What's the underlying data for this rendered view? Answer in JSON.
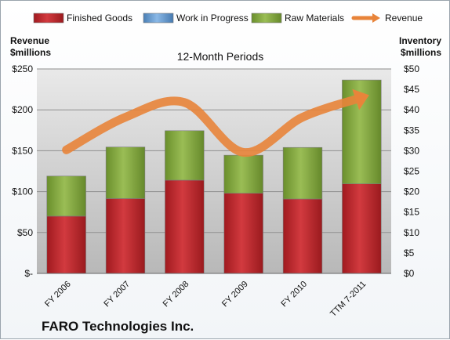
{
  "chart_data": {
    "type": "bar",
    "title": "12-Month Periods",
    "company": "FARO Technologies Inc.",
    "categories": [
      "FY 2006",
      "FY 2007",
      "FY 2008",
      "FY 2009",
      "FY 2010",
      "TTM 7-2011"
    ],
    "left_axis": {
      "label_line1": "Revenue",
      "label_line2": "$millions",
      "ylim": [
        0,
        250
      ],
      "ticks": [
        "$-",
        "$50",
        "$100",
        "$150",
        "$200",
        "$250"
      ]
    },
    "right_axis": {
      "label_line1": "Inventory",
      "label_line2": "$millions",
      "ylim": [
        0,
        50
      ],
      "ticks": [
        "$0",
        "$5",
        "$10",
        "$15",
        "$20",
        "$25",
        "$30",
        "$35",
        "$40",
        "$45",
        "$50"
      ]
    },
    "stacked": true,
    "series": [
      {
        "name": "Finished Goods",
        "axis": "right",
        "color": "#c0272d",
        "values": [
          14,
          18.3,
          22.8,
          19.6,
          18.2,
          21.9
        ]
      },
      {
        "name": "Work in Progress",
        "axis": "right",
        "color": "#5b9bd5",
        "values": [
          0,
          0,
          0,
          0,
          0,
          0
        ]
      },
      {
        "name": "Raw Materials",
        "axis": "right",
        "color": "#7fa33a",
        "values": [
          9.8,
          12.6,
          12.1,
          9.3,
          12.6,
          25.4
        ]
      },
      {
        "name": "Revenue",
        "axis": "left",
        "type": "line",
        "color": "#e8843a",
        "values": [
          151,
          191,
          209,
          148,
          191,
          215
        ]
      }
    ],
    "grid": true,
    "legend_position": "top"
  }
}
